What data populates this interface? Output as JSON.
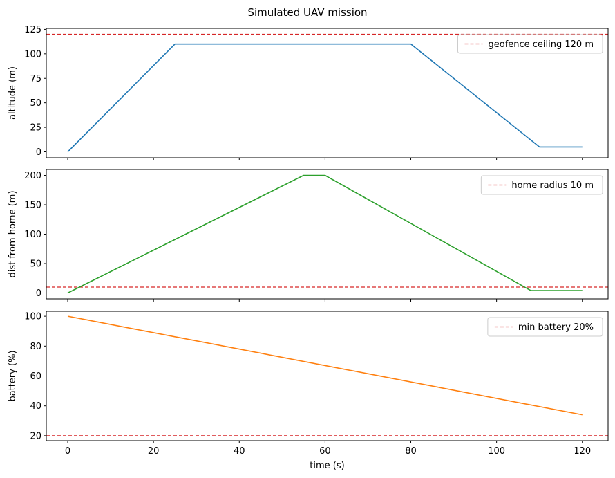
{
  "figure": {
    "title": "Simulated UAV mission"
  },
  "chart_data": [
    {
      "type": "line",
      "title": "",
      "xlabel": "",
      "ylabel": "altitude (m)",
      "xlim": [
        -5,
        126
      ],
      "ylim": [
        -6,
        126
      ],
      "xticks": [
        0,
        20,
        40,
        60,
        80,
        100,
        120
      ],
      "show_xtick_labels": false,
      "yticks": [
        0,
        25,
        50,
        75,
        100,
        125
      ],
      "grid": false,
      "legend_position": "top-right",
      "series": [
        {
          "name": "",
          "color": "#1f77b4",
          "x": [
            0,
            25,
            80,
            110,
            120
          ],
          "y": [
            0,
            110,
            110,
            5,
            5
          ]
        }
      ],
      "reference_lines": [
        {
          "name": "geofence ceiling 120 m",
          "axis": "y",
          "value": 120,
          "color": "#d62728"
        }
      ]
    },
    {
      "type": "line",
      "title": "",
      "xlabel": "",
      "ylabel": "dist from home (m)",
      "xlim": [
        -5,
        126
      ],
      "ylim": [
        -10,
        210
      ],
      "xticks": [
        0,
        20,
        40,
        60,
        80,
        100,
        120
      ],
      "show_xtick_labels": false,
      "yticks": [
        0,
        50,
        100,
        150,
        200
      ],
      "grid": false,
      "legend_position": "top-right",
      "series": [
        {
          "name": "",
          "color": "#2ca02c",
          "x": [
            0,
            55,
            60,
            108,
            120
          ],
          "y": [
            0,
            200,
            200,
            4,
            4
          ]
        }
      ],
      "reference_lines": [
        {
          "name": "home radius 10 m",
          "axis": "y",
          "value": 10,
          "color": "#d62728"
        }
      ]
    },
    {
      "type": "line",
      "title": "",
      "xlabel": "time (s)",
      "ylabel": "battery (%)",
      "xlim": [
        -5,
        126
      ],
      "ylim": [
        16.7,
        103.3
      ],
      "xticks": [
        0,
        20,
        40,
        60,
        80,
        100,
        120
      ],
      "show_xtick_labels": true,
      "yticks": [
        20,
        40,
        60,
        80,
        100
      ],
      "grid": false,
      "legend_position": "top-right",
      "series": [
        {
          "name": "",
          "color": "#ff7f0e",
          "x": [
            0,
            120
          ],
          "y": [
            100,
            34
          ]
        }
      ],
      "reference_lines": [
        {
          "name": "min battery 20%",
          "axis": "y",
          "value": 20,
          "color": "#d62728"
        }
      ]
    }
  ]
}
